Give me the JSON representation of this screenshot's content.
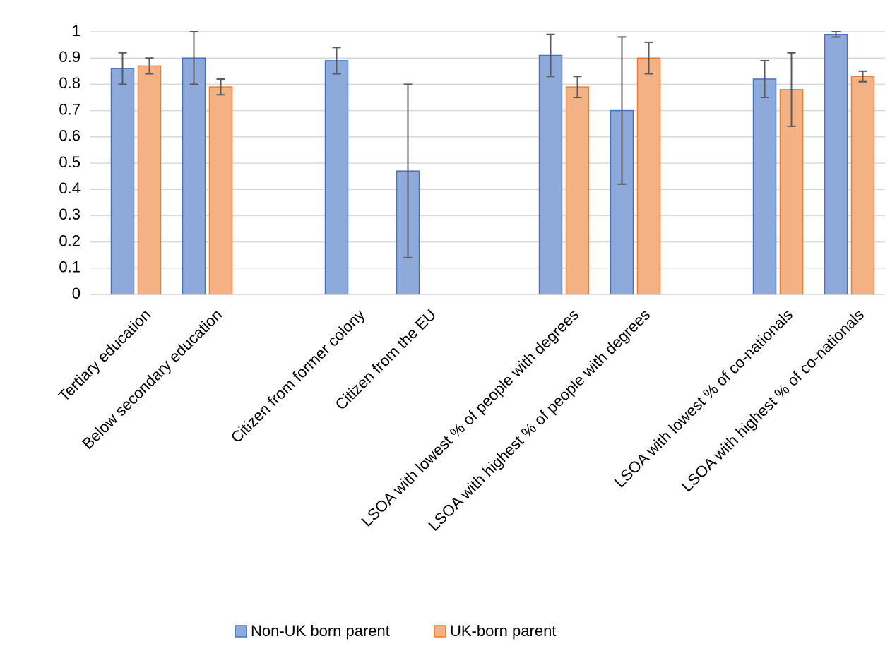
{
  "chart_data": {
    "type": "bar",
    "categories": [
      "Tertiary education",
      "Below secondary education",
      null,
      "Citizen from former colony",
      "Citizen from the EU",
      null,
      "LSOA with lowest % of people with degrees",
      "LSOA with highest % of people with degrees",
      null,
      "LSOA with lowest % of co-nationals",
      "LSOA with highest % of co-nationals"
    ],
    "series": [
      {
        "name": "Non-UK born parent",
        "color": "#8eaadb",
        "edge_color": "#4472c4",
        "values": [
          0.86,
          0.9,
          null,
          0.89,
          0.47,
          null,
          0.91,
          0.7,
          null,
          0.82,
          0.99
        ],
        "errors": [
          0.06,
          0.1,
          null,
          0.05,
          0.33,
          null,
          0.08,
          0.28,
          null,
          0.07,
          0.01
        ]
      },
      {
        "name": "UK-born parent",
        "color": "#f4b183",
        "edge_color": "#ed7d31",
        "values": [
          0.87,
          0.79,
          null,
          null,
          null,
          null,
          0.79,
          0.9,
          null,
          0.78,
          0.83
        ],
        "errors": [
          0.03,
          0.03,
          null,
          null,
          null,
          null,
          0.04,
          0.06,
          null,
          0.14,
          0.02
        ]
      }
    ],
    "ylim": [
      0,
      1
    ],
    "yticks": [
      0,
      0.1,
      0.2,
      0.3,
      0.4,
      0.5,
      0.6,
      0.7,
      0.8,
      0.9,
      1
    ],
    "grid": true,
    "legend": "bottom"
  }
}
